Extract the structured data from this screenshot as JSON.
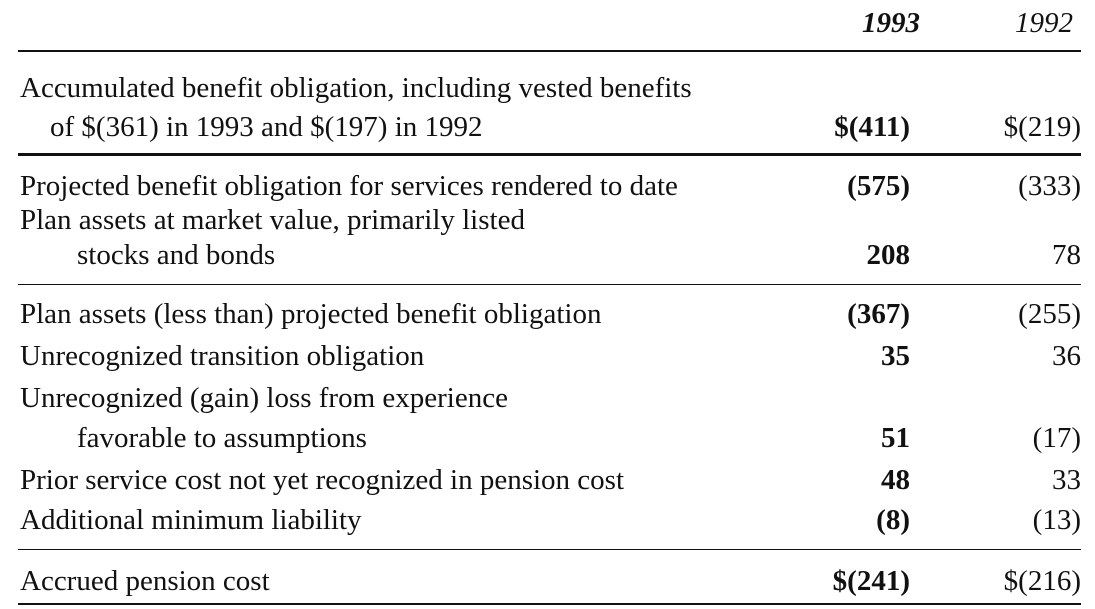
{
  "header": {
    "col_1993": "1993",
    "col_1992": "1992"
  },
  "rows": [
    {
      "label_lines": [
        "Accumulated benefit obligation, including vested benefits",
        "of $(361) in 1993 and $(197) in 1992"
      ],
      "v1993": "$(411)",
      "v1992": "$(219)"
    },
    {
      "label_lines": [
        "Projected benefit obligation for services rendered to date"
      ],
      "v1993": "(575)",
      "v1992": "(333)"
    },
    {
      "label_lines": [
        "Plan assets at market value, primarily listed",
        "stocks and bonds"
      ],
      "v1993": "208",
      "v1992": "78"
    },
    {
      "label_lines": [
        "Plan assets (less than) projected benefit obligation"
      ],
      "v1993": "(367)",
      "v1992": "(255)"
    },
    {
      "label_lines": [
        "Unrecognized transition obligation"
      ],
      "v1993": "35",
      "v1992": "36"
    },
    {
      "label_lines": [
        "Unrecognized (gain) loss from experience",
        "favorable to assumptions"
      ],
      "v1993": "51",
      "v1992": "(17)"
    },
    {
      "label_lines": [
        "Prior service cost not yet recognized in pension cost"
      ],
      "v1993": "48",
      "v1992": "33"
    },
    {
      "label_lines": [
        "Additional minimum liability"
      ],
      "v1993": "(8)",
      "v1992": "(13)"
    },
    {
      "label_lines": [
        "Accrued pension cost"
      ],
      "v1993": "$(241)",
      "v1992": "$(216)"
    }
  ]
}
